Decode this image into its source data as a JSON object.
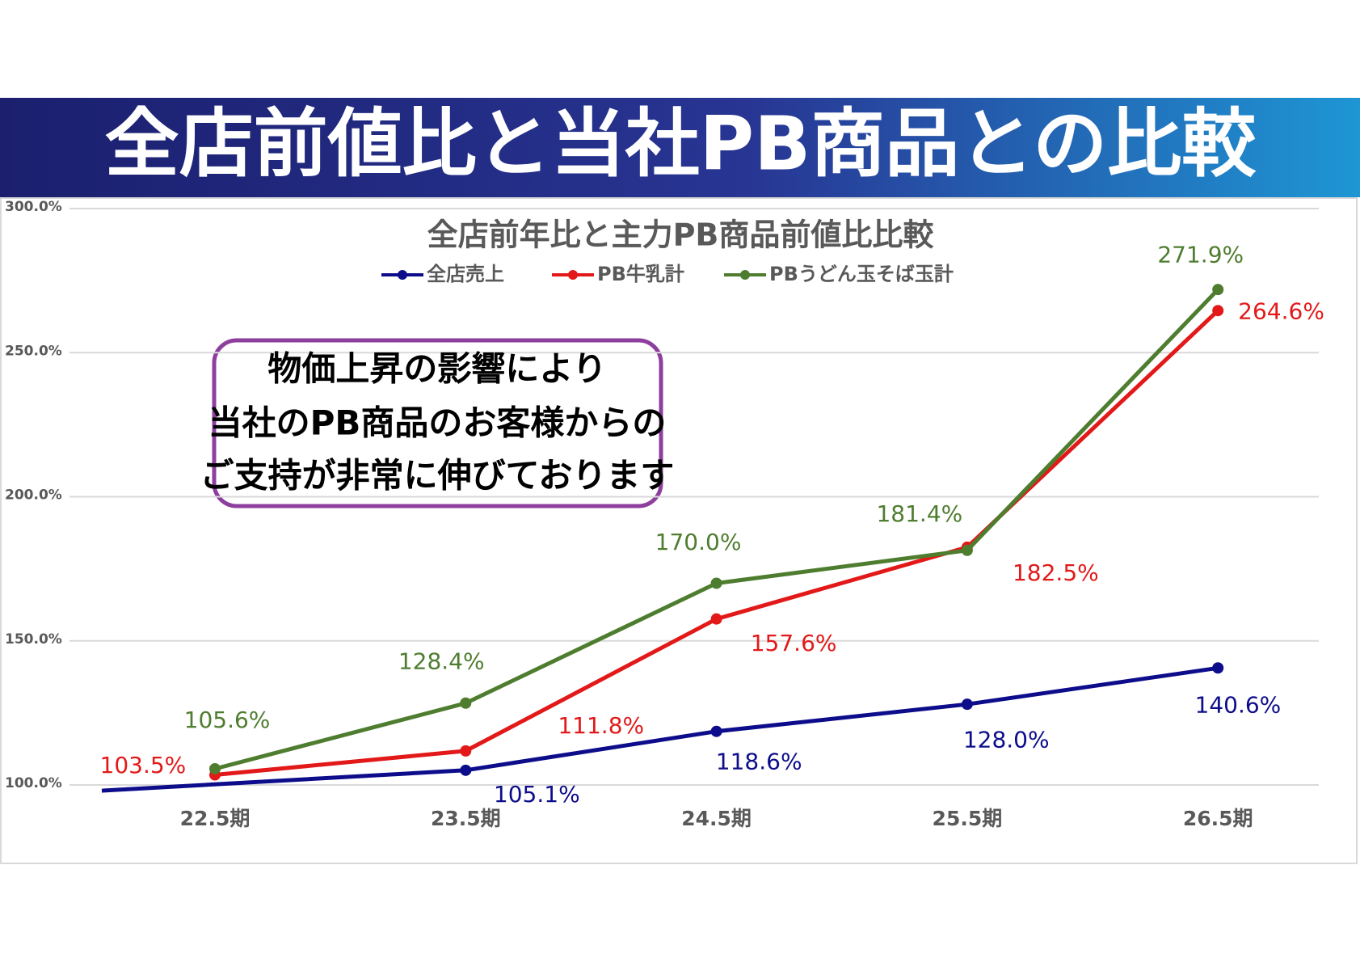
{
  "header": {
    "title": "全店前値比と当社PB商品との比較"
  },
  "chart_data": {
    "type": "line",
    "title": "全店前年比と主力PB商品前値比比較",
    "categories": [
      "22.5期",
      "23.5期",
      "24.5期",
      "25.5期",
      "26.5期"
    ],
    "series": [
      {
        "name": "全店売上",
        "color": "#0d0d8c",
        "values": [
          98,
          105.1,
          118.6,
          128.0,
          140.6
        ],
        "value_labels": [
          null,
          "105.1%",
          "118.6%",
          "128.0%",
          "140.6%"
        ]
      },
      {
        "name": "PB牛乳計",
        "color": "#e31919",
        "values": [
          103.5,
          111.8,
          157.6,
          182.5,
          264.6
        ],
        "value_labels": [
          "103.5%",
          "111.8%",
          "157.6%",
          "182.5%",
          "264.6%"
        ]
      },
      {
        "name": "PBうどん玉そば玉計",
        "color": "#4e7d2f",
        "values": [
          105.6,
          128.4,
          170.0,
          181.4,
          271.9
        ],
        "value_labels": [
          "105.6%",
          "128.4%",
          "170.0%",
          "181.4%",
          "271.9%"
        ]
      }
    ],
    "ylim": [
      100,
      300
    ],
    "yticks": [
      {
        "value": 100,
        "label": "100.0%"
      },
      {
        "value": 150,
        "label": "150.0%"
      },
      {
        "value": 200,
        "label": "200.0%"
      },
      {
        "value": 250,
        "label": "250.0%"
      },
      {
        "value": 300,
        "label": "300.0%"
      }
    ],
    "grid": true,
    "legend": "top",
    "annotation": [
      "物価上昇の影響により",
      "当社のPB商品のお客様からの",
      "ご支持が非常に伸びております"
    ]
  }
}
